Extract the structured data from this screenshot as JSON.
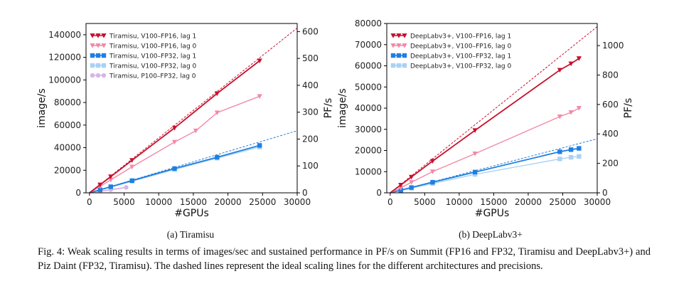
{
  "caption": "Fig. 4: Weak scaling results in terms of images/sec and sustained performance in PF/s on Summit (FP16 and FP32, Tiramisu and DeepLabv3+) and Piz Daint (FP32, Tiramisu). The dashed lines represent the ideal scaling lines for the different architectures and precisions.",
  "chart_data": [
    {
      "type": "line",
      "subcaption": "(a) Tiramisu",
      "xlabel": "#GPUs",
      "ylabel": "image/s",
      "y2label": "PF/s",
      "xlim": [
        -500,
        30000
      ],
      "ylim": [
        0,
        150000
      ],
      "y2lim": [
        0,
        630
      ],
      "xticks": [
        "0",
        "5000",
        "10000",
        "15000",
        "20000",
        "25000",
        "30000"
      ],
      "yticks": [
        "0",
        "20000",
        "40000",
        "60000",
        "80000",
        "100000",
        "120000",
        "140000"
      ],
      "y2ticks": [
        "0",
        "100",
        "200",
        "300",
        "400",
        "500",
        "600"
      ],
      "legend_position": "top-left",
      "series": [
        {
          "name": "Tiramisu, V100–FP16, lag 1",
          "color": "#c8102e",
          "marker": "triangle-down",
          "x": [
            6,
            24,
            96,
            384,
            1536,
            3072,
            6144,
            12288,
            18432,
            24576
          ],
          "y": [
            30,
            115,
            460,
            1800,
            7200,
            14300,
            28800,
            57500,
            88000,
            117000
          ]
        },
        {
          "name": "Tiramisu, V100–FP16, lag 0",
          "color": "#f28aa6",
          "marker": "triangle-down",
          "x": [
            6,
            24,
            96,
            384,
            1536,
            3072,
            6144,
            12288,
            15360,
            18432,
            24576
          ],
          "y": [
            25,
            95,
            380,
            1500,
            5800,
            11500,
            23000,
            45000,
            55000,
            71000,
            85500
          ]
        },
        {
          "name": "Tiramisu, V100–FP32, lag 1",
          "color": "#1f7fe0",
          "marker": "square",
          "x": [
            6,
            24,
            96,
            384,
            1536,
            3072,
            6144,
            12288,
            18432,
            24576
          ],
          "y": [
            11,
            43,
            170,
            680,
            2700,
            5400,
            10800,
            21500,
            31500,
            42000
          ]
        },
        {
          "name": "Tiramisu, V100–FP32, lag 0",
          "color": "#a9d2f5",
          "marker": "square",
          "x": [
            6,
            24,
            96,
            384,
            1536,
            3072,
            6144,
            12288,
            18432,
            24576
          ],
          "y": [
            10,
            40,
            160,
            640,
            2550,
            5100,
            10300,
            20700,
            30700,
            40500
          ]
        },
        {
          "name": "Tiramisu, P100–FP32, lag 0",
          "color": "#d9b3ea",
          "marker": "circle",
          "x": [
            6,
            24,
            96,
            384,
            1536,
            3072,
            5300
          ],
          "y": [
            6,
            22,
            88,
            350,
            1400,
            2750,
            4800
          ]
        }
      ],
      "ideal_lines": [
        {
          "color": "#c8102e",
          "x": [
            0,
            30000
          ],
          "y": [
            0,
            146000
          ]
        },
        {
          "color": "#1f7fe0",
          "x": [
            0,
            30000
          ],
          "y": [
            0,
            55000
          ]
        }
      ]
    },
    {
      "type": "line",
      "subcaption": "(b) DeepLabv3+",
      "xlabel": "#GPUs",
      "ylabel": "image/s",
      "y2label": "PF/s",
      "xlim": [
        -500,
        30000
      ],
      "ylim": [
        0,
        80000
      ],
      "y2lim": [
        0,
        1150
      ],
      "xticks": [
        "0",
        "5000",
        "10000",
        "15000",
        "20000",
        "25000",
        "30000"
      ],
      "yticks": [
        "0",
        "10000",
        "20000",
        "30000",
        "40000",
        "50000",
        "60000",
        "70000",
        "80000"
      ],
      "y2ticks": [
        "0",
        "200",
        "400",
        "600",
        "800",
        "1000"
      ],
      "legend_position": "top-left",
      "series": [
        {
          "name": "DeepLabv3+, V100–FP16, lag 1",
          "color": "#c8102e",
          "marker": "triangle-down",
          "x": [
            6,
            24,
            96,
            384,
            1536,
            3072,
            6144,
            12288,
            24576,
            26200,
            27360
          ],
          "y": [
            15,
            60,
            240,
            950,
            3700,
            7500,
            15000,
            29500,
            58000,
            61000,
            63500
          ]
        },
        {
          "name": "DeepLabv3+, V100–FP16, lag 0",
          "color": "#f28aa6",
          "marker": "triangle-down",
          "x": [
            6,
            24,
            96,
            384,
            1536,
            3072,
            6144,
            12288,
            24576,
            26200,
            27360
          ],
          "y": [
            9,
            37,
            145,
            580,
            2300,
            5000,
            10000,
            18500,
            36000,
            38000,
            40000
          ]
        },
        {
          "name": "DeepLabv3+, V100–FP32, lag 1",
          "color": "#1f7fe0",
          "marker": "square",
          "x": [
            6,
            24,
            96,
            384,
            1536,
            3072,
            6144,
            12288,
            24576,
            26200,
            27360
          ],
          "y": [
            5,
            20,
            80,
            320,
            1250,
            2500,
            5000,
            9800,
            19400,
            20400,
            21000
          ]
        },
        {
          "name": "DeepLabv3+, V100–FP32, lag 0",
          "color": "#a9d2f5",
          "marker": "square",
          "x": [
            6,
            24,
            96,
            384,
            1536,
            3072,
            6144,
            12288,
            24576,
            26200,
            27360
          ],
          "y": [
            4,
            17,
            68,
            270,
            1100,
            2200,
            4400,
            8700,
            16000,
            16800,
            17200
          ]
        }
      ],
      "ideal_lines": [
        {
          "color": "#c8102e",
          "x": [
            0,
            30000
          ],
          "y": [
            0,
            78500
          ]
        },
        {
          "color": "#1f7fe0",
          "x": [
            0,
            30000
          ],
          "y": [
            0,
            25500
          ]
        }
      ]
    }
  ]
}
